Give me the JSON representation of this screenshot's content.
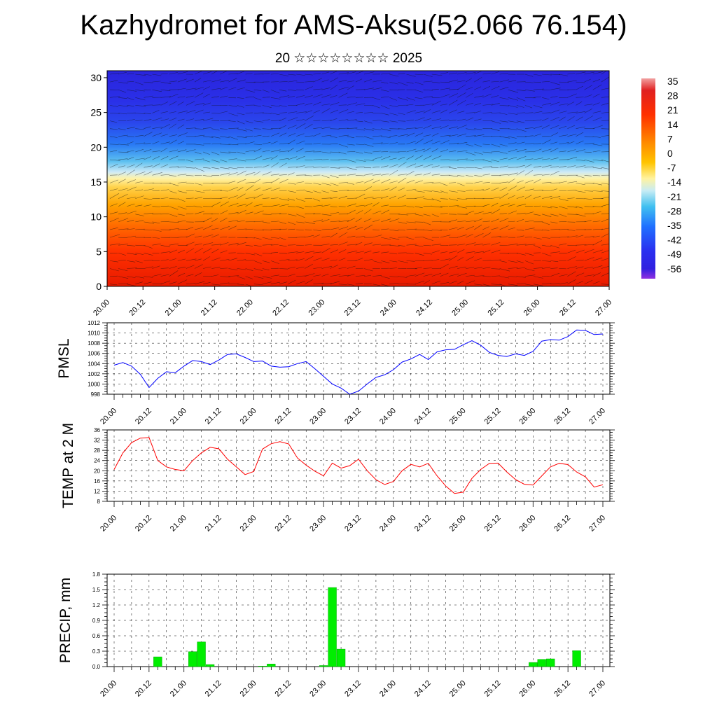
{
  "title": "Kazhydromet for AMS-Aksu(52.066 76.154)",
  "subtitle": "20 ☆☆☆☆☆☆☆☆ 2025",
  "time_labels": [
    "20.00",
    "20.12",
    "21.00",
    "21.12",
    "22.00",
    "22.12",
    "23.00",
    "23.12",
    "24.00",
    "24.12",
    "25.00",
    "25.12",
    "26.00",
    "26.12",
    "27.00"
  ],
  "chart_data": [
    {
      "type": "heatmap",
      "title": "",
      "xlabel": "",
      "ylabel": "",
      "ylim": [
        0,
        31
      ],
      "yticks": [
        0,
        5,
        10,
        15,
        20,
        25,
        30
      ],
      "colorbar": {
        "labels": [
          "35",
          "28",
          "21",
          "14",
          "7",
          "0",
          "-7",
          "-14",
          "-21",
          "-28",
          "-35",
          "-42",
          "-49",
          "-56"
        ],
        "colors": [
          "#e07070",
          "#e01010",
          "#ff3b00",
          "#ff6a00",
          "#ff9a00",
          "#ffc400",
          "#fff07a",
          "#c8ecf4",
          "#4cc4ee",
          "#20a0f0",
          "#2a70ff",
          "#2a38f0",
          "#3a20e0",
          "#8a30e0"
        ]
      }
    },
    {
      "type": "line",
      "title": "",
      "xlabel": "",
      "ylabel": "PMSL",
      "ylim": [
        998,
        1012
      ],
      "yticks": [
        998,
        1000,
        1002,
        1004,
        1006,
        1008,
        1010,
        1012
      ],
      "color": "#0000ff",
      "x": [
        0,
        3,
        6,
        9,
        12,
        15,
        18,
        21,
        24,
        27,
        30,
        33,
        36,
        39,
        42,
        45,
        48,
        51,
        54,
        57,
        60,
        63,
        66,
        69,
        72,
        75,
        78,
        81,
        84,
        87,
        90,
        93,
        96,
        99,
        102,
        105,
        108,
        111,
        114,
        117,
        120,
        123,
        126,
        129,
        132,
        135,
        138,
        141,
        144,
        147,
        150,
        153,
        156,
        159,
        162,
        165,
        168
      ],
      "values": [
        1003.7,
        1004.2,
        1003.5,
        1001.9,
        999.3,
        1001.1,
        1002.4,
        1002.2,
        1003.5,
        1004.6,
        1004.4,
        1003.8,
        1004.7,
        1005.8,
        1005.9,
        1005.2,
        1004.4,
        1004.5,
        1003.5,
        1003.3,
        1003.4,
        1004.0,
        1004.4,
        1003.0,
        1001.5,
        1000.0,
        999.2,
        998.0,
        998.6,
        1000.0,
        1001.3,
        1001.8,
        1002.8,
        1004.3,
        1004.9,
        1005.8,
        1004.8,
        1006.3,
        1006.7,
        1006.8,
        1007.7,
        1008.5,
        1007.6,
        1006.2,
        1005.6,
        1005.4,
        1005.9,
        1005.6,
        1006.4,
        1008.4,
        1008.7,
        1008.6,
        1009.3,
        1010.6,
        1010.5,
        1009.7,
        1009.8
      ]
    },
    {
      "type": "line",
      "title": "",
      "xlabel": "",
      "ylabel": "TEMP at 2 M",
      "ylim": [
        8,
        36
      ],
      "yticks": [
        8,
        12,
        16,
        20,
        24,
        28,
        32,
        36
      ],
      "color": "#ff0000",
      "x": [
        0,
        3,
        6,
        9,
        12,
        15,
        18,
        21,
        24,
        27,
        30,
        33,
        36,
        39,
        42,
        45,
        48,
        51,
        54,
        57,
        60,
        63,
        66,
        69,
        72,
        75,
        78,
        81,
        84,
        87,
        90,
        93,
        96,
        99,
        102,
        105,
        108,
        111,
        114,
        117,
        120,
        123,
        126,
        129,
        132,
        135,
        138,
        141,
        144,
        147,
        150,
        153,
        156,
        159,
        162,
        165,
        168
      ],
      "values": [
        20.5,
        27.0,
        31.0,
        32.8,
        33.0,
        24.0,
        21.5,
        20.5,
        20.0,
        24.0,
        27.0,
        29.2,
        28.6,
        24.5,
        21.5,
        18.5,
        19.7,
        28.5,
        30.6,
        31.4,
        30.5,
        25.0,
        22.2,
        19.8,
        18.0,
        23.0,
        21.0,
        22.0,
        24.5,
        20.0,
        16.5,
        14.6,
        15.8,
        20.0,
        22.5,
        21.5,
        22.9,
        18.0,
        14.0,
        11.1,
        11.6,
        17.0,
        20.5,
        22.9,
        23.0,
        19.5,
        16.5,
        14.7,
        14.4,
        18.0,
        21.5,
        22.9,
        22.4,
        19.5,
        17.6,
        13.6,
        14.5
      ]
    },
    {
      "type": "bar",
      "title": "",
      "xlabel": "",
      "ylabel": "PRECIP, mm",
      "ylim": [
        0,
        1.8
      ],
      "yticks": [
        "0.0",
        "0.3",
        "0.6",
        "0.9",
        "1.2",
        "1.5",
        "1.8"
      ],
      "color": "#00ee00",
      "x": [
        15,
        27,
        30,
        33,
        51,
        54,
        72,
        75,
        78,
        144,
        147,
        150,
        159
      ],
      "values": [
        0.19,
        0.29,
        0.48,
        0.04,
        0.01,
        0.05,
        0.02,
        1.54,
        0.34,
        0.08,
        0.14,
        0.15,
        0.31
      ]
    }
  ]
}
